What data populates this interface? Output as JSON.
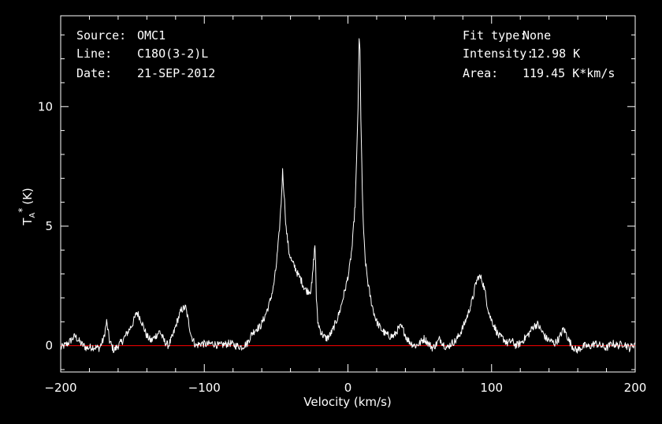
{
  "header_left": [
    {
      "key": "Source:",
      "value": "OMC1"
    },
    {
      "key": "Line:",
      "value": "C18O(3-2)L"
    },
    {
      "key": "Date:",
      "value": "21-SEP-2012"
    }
  ],
  "header_right": [
    {
      "key": "Fit type:",
      "value": "None"
    },
    {
      "key": "Intensity:",
      "value": "12.98 K"
    },
    {
      "key": "Area:",
      "value": "119.45 K*km/s"
    }
  ],
  "colors": {
    "background": "#000000",
    "axes": "#ffffff",
    "spectrum": "#ffffff",
    "baseline": "#ff0000"
  },
  "chart_data": {
    "type": "line",
    "title": "",
    "xlabel": "Velocity (km/s)",
    "ylabel_main": "T",
    "ylabel_sub": "A",
    "ylabel_sup": "*",
    "ylabel_unit": "(K)",
    "xlim": [
      -200,
      200
    ],
    "ylim": [
      -1.1,
      13.8
    ],
    "x_ticks": [
      -200,
      -100,
      0,
      100,
      200
    ],
    "x_tick_labels": [
      "−200",
      "−100",
      "0",
      "100",
      "200"
    ],
    "y_ticks": [
      0,
      5,
      10
    ],
    "y_tick_labels": [
      "0",
      "5",
      "10"
    ],
    "baseline_y": 0,
    "grid": false,
    "series": [
      {
        "points": [
          [
            -200,
            -0.1
          ],
          [
            -195,
            0.1
          ],
          [
            -190,
            0.4
          ],
          [
            -186,
            0.1
          ],
          [
            -182,
            -0.1
          ],
          [
            -178,
            -0.05
          ],
          [
            -173,
            -0.1
          ],
          [
            -170,
            0.3
          ],
          [
            -168,
            1.0
          ],
          [
            -166,
            0.2
          ],
          [
            -163,
            -0.2
          ],
          [
            -160,
            0.0
          ],
          [
            -157,
            0.2
          ],
          [
            -154,
            0.5
          ],
          [
            -150,
            0.9
          ],
          [
            -147,
            1.4
          ],
          [
            -145,
            1.2
          ],
          [
            -143,
            0.9
          ],
          [
            -140,
            0.4
          ],
          [
            -137,
            0.2
          ],
          [
            -134,
            0.4
          ],
          [
            -131,
            0.6
          ],
          [
            -128,
            0.2
          ],
          [
            -125,
            0.0
          ],
          [
            -122,
            0.4
          ],
          [
            -119,
            1.0
          ],
          [
            -116,
            1.5
          ],
          [
            -113,
            1.6
          ],
          [
            -111,
            1.0
          ],
          [
            -109,
            0.4
          ],
          [
            -106,
            0.0
          ],
          [
            -102,
            0.1
          ],
          [
            -98,
            0.05
          ],
          [
            -94,
            0.1
          ],
          [
            -90,
            0.0
          ],
          [
            -86,
            0.05
          ],
          [
            -82,
            0.1
          ],
          [
            -78,
            0.0
          ],
          [
            -74,
            -0.05
          ],
          [
            -70,
            0.1
          ],
          [
            -67,
            0.5
          ],
          [
            -64,
            0.7
          ],
          [
            -61,
            0.8
          ],
          [
            -58,
            1.2
          ],
          [
            -55,
            1.7
          ],
          [
            -52,
            2.4
          ],
          [
            -50,
            3.3
          ],
          [
            -48,
            4.6
          ],
          [
            -46.5,
            6.0
          ],
          [
            -45.5,
            7.3
          ],
          [
            -44.5,
            6.4
          ],
          [
            -43,
            4.9
          ],
          [
            -41,
            3.9
          ],
          [
            -39,
            3.5
          ],
          [
            -37,
            3.3
          ],
          [
            -35,
            3.0
          ],
          [
            -33,
            2.8
          ],
          [
            -31,
            2.5
          ],
          [
            -29,
            2.3
          ],
          [
            -27,
            2.3
          ],
          [
            -26,
            2.3
          ],
          [
            -25,
            2.6
          ],
          [
            -24,
            3.5
          ],
          [
            -23,
            4.2
          ],
          [
            -22.5,
            3.5
          ],
          [
            -22,
            2.0
          ],
          [
            -21,
            1.0
          ],
          [
            -19,
            0.6
          ],
          [
            -17,
            0.4
          ],
          [
            -15,
            0.3
          ],
          [
            -13,
            0.4
          ],
          [
            -11,
            0.6
          ],
          [
            -9,
            0.9
          ],
          [
            -7,
            1.2
          ],
          [
            -5,
            1.6
          ],
          [
            -3,
            2.1
          ],
          [
            -1,
            2.6
          ],
          [
            1,
            3.2
          ],
          [
            3,
            4.2
          ],
          [
            5,
            5.9
          ],
          [
            6,
            7.6
          ],
          [
            7,
            10.0
          ],
          [
            7.8,
            12.8
          ],
          [
            8.4,
            12.3
          ],
          [
            9,
            9.5
          ],
          [
            10,
            6.5
          ],
          [
            11,
            4.6
          ],
          [
            12,
            3.6
          ],
          [
            14,
            2.6
          ],
          [
            16,
            1.9
          ],
          [
            18,
            1.4
          ],
          [
            20,
            1.0
          ],
          [
            23,
            0.7
          ],
          [
            26,
            0.5
          ],
          [
            29,
            0.4
          ],
          [
            32,
            0.4
          ],
          [
            35,
            0.7
          ],
          [
            37,
            0.8
          ],
          [
            39,
            0.6
          ],
          [
            41,
            0.3
          ],
          [
            44,
            0.1
          ],
          [
            47,
            0.0
          ],
          [
            50,
            0.1
          ],
          [
            53,
            0.3
          ],
          [
            56,
            0.1
          ],
          [
            59,
            -0.1
          ],
          [
            62,
            0.1
          ],
          [
            64,
            0.3
          ],
          [
            66,
            0.1
          ],
          [
            69,
            -0.1
          ],
          [
            72,
            0.1
          ],
          [
            75,
            0.2
          ],
          [
            78,
            0.5
          ],
          [
            81,
            0.9
          ],
          [
            84,
            1.4
          ],
          [
            87,
            2.0
          ],
          [
            89,
            2.6
          ],
          [
            91,
            2.9
          ],
          [
            93,
            2.8
          ],
          [
            95,
            2.4
          ],
          [
            97,
            1.7
          ],
          [
            99,
            1.2
          ],
          [
            102,
            0.8
          ],
          [
            105,
            0.4
          ],
          [
            108,
            0.3
          ],
          [
            111,
            0.1
          ],
          [
            114,
            0.2
          ],
          [
            117,
            0.0
          ],
          [
            120,
            0.1
          ],
          [
            123,
            0.3
          ],
          [
            126,
            0.5
          ],
          [
            129,
            0.8
          ],
          [
            132,
            0.9
          ],
          [
            135,
            0.6
          ],
          [
            138,
            0.3
          ],
          [
            141,
            0.2
          ],
          [
            144,
            0.1
          ],
          [
            147,
            0.3
          ],
          [
            150,
            0.7
          ],
          [
            152,
            0.5
          ],
          [
            154,
            0.2
          ],
          [
            156,
            0.0
          ],
          [
            159,
            -0.2
          ],
          [
            162,
            -0.1
          ],
          [
            165,
            0.0
          ],
          [
            168,
            -0.05
          ],
          [
            172,
            0.1
          ],
          [
            176,
            0.0
          ],
          [
            180,
            -0.1
          ],
          [
            184,
            0.1
          ],
          [
            188,
            0.0
          ],
          [
            192,
            0.1
          ],
          [
            196,
            -0.1
          ],
          [
            200,
            0.1
          ]
        ]
      }
    ]
  }
}
